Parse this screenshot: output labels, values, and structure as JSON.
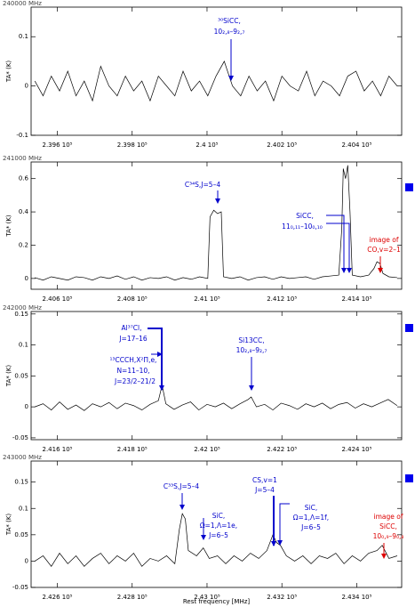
{
  "chart_data": [
    {
      "type": "line",
      "subtitle": "240000 MHz",
      "ylabel": "TA* (K)",
      "color": "#000000",
      "xlim": [
        239530,
        240520
      ],
      "ylim": [
        -0.1,
        0.16
      ],
      "xticks": [
        {
          "value": 239600,
          "label": "2.396 10⁵"
        },
        {
          "value": 239800,
          "label": "2.398 10⁵"
        },
        {
          "value": 240000,
          "label": "2.4 10⁵"
        },
        {
          "value": 240200,
          "label": "2.402 10⁵"
        },
        {
          "value": 240400,
          "label": "2.404 10⁵"
        }
      ],
      "yticks": [
        -0.1,
        0,
        0.1
      ],
      "x": [
        239540,
        239562,
        239584,
        239606,
        239628,
        239650,
        239672,
        239694,
        239716,
        239738,
        239760,
        239782,
        239804,
        239826,
        239848,
        239870,
        239892,
        239914,
        239936,
        239958,
        239980,
        240002,
        240024,
        240046,
        240068,
        240090,
        240112,
        240134,
        240156,
        240178,
        240200,
        240222,
        240244,
        240266,
        240288,
        240310,
        240332,
        240354,
        240376,
        240398,
        240420,
        240442,
        240464,
        240486,
        240508
      ],
      "values": [
        0.01,
        -0.02,
        0.02,
        -0.01,
        0.03,
        -0.02,
        0.01,
        -0.03,
        0.04,
        0.0,
        -0.02,
        0.02,
        -0.01,
        0.01,
        -0.03,
        0.02,
        0.0,
        -0.02,
        0.03,
        -0.01,
        0.01,
        -0.02,
        0.02,
        0.05,
        0.0,
        -0.02,
        0.02,
        -0.01,
        0.01,
        -0.03,
        0.02,
        0.0,
        -0.01,
        0.03,
        -0.02,
        0.01,
        0.0,
        -0.02,
        0.02,
        0.03,
        -0.01,
        0.01,
        -0.02,
        0.02,
        0.0
      ],
      "annotations": [
        {
          "lines": [
            "³⁰SiCC,",
            "10₂,₈–9₂,₇"
          ],
          "color": "#0000cc"
        }
      ]
    },
    {
      "type": "line",
      "subtitle": "241000 MHz",
      "ylabel": "TA* (K)",
      "color": "#000000",
      "xlim": [
        240530,
        241520
      ],
      "ylim": [
        -0.065,
        0.7
      ],
      "xticks": [
        {
          "value": 240600,
          "label": "2.406 10⁵"
        },
        {
          "value": 240800,
          "label": "2.408 10⁵"
        },
        {
          "value": 241000,
          "label": "2.41 10⁵"
        },
        {
          "value": 241200,
          "label": "2.412 10⁵"
        },
        {
          "value": 241400,
          "label": "2.414 10⁵"
        }
      ],
      "yticks": [
        0,
        0.2,
        0.4,
        0.6
      ],
      "x": [
        240540,
        240562,
        240584,
        240606,
        240628,
        240650,
        240672,
        240694,
        240716,
        240738,
        240760,
        240782,
        240804,
        240826,
        240848,
        240870,
        240892,
        240914,
        240936,
        240958,
        240980,
        241002,
        241008,
        241018,
        241028,
        241038,
        241044,
        241066,
        241088,
        241110,
        241132,
        241154,
        241176,
        241198,
        241220,
        241242,
        241264,
        241286,
        241308,
        241330,
        241352,
        241360,
        241364,
        241370,
        241376,
        241382,
        241388,
        241410,
        241432,
        241446,
        241454,
        241462,
        241470,
        241486,
        241508
      ],
      "values": [
        0.005,
        -0.01,
        0.01,
        0.0,
        -0.01,
        0.01,
        0.005,
        -0.01,
        0.01,
        0.0,
        0.015,
        -0.005,
        0.01,
        -0.01,
        0.005,
        0.0,
        0.01,
        -0.01,
        0.005,
        -0.005,
        0.01,
        0.0,
        0.37,
        0.41,
        0.39,
        0.4,
        0.01,
        0.0,
        0.01,
        -0.01,
        0.005,
        0.01,
        -0.005,
        0.01,
        0.0,
        0.005,
        0.01,
        -0.005,
        0.01,
        0.015,
        0.02,
        0.3,
        0.66,
        0.6,
        0.68,
        0.4,
        0.02,
        0.01,
        0.02,
        0.06,
        0.1,
        0.09,
        0.03,
        0.01,
        0.005
      ],
      "annotations": [
        {
          "lines": [
            "C³⁴S,J=5–4"
          ],
          "color": "#0000cc"
        },
        {
          "lines": [
            "SiCC,",
            "11₀,₁₁–10₀,₁₀"
          ],
          "color": "#0000cc"
        },
        {
          "lines": [
            "image of",
            "CO,v=2–1"
          ],
          "color": "#dd0000"
        }
      ]
    },
    {
      "type": "line",
      "subtitle": "242000 MHz",
      "ylabel": "TA* (K)",
      "color": "#000000",
      "xlim": [
        241530,
        242520
      ],
      "ylim": [
        -0.053,
        0.154
      ],
      "xticks": [
        {
          "value": 241600,
          "label": "2.416 10⁵"
        },
        {
          "value": 241800,
          "label": "2.418 10⁵"
        },
        {
          "value": 242000,
          "label": "2.42 10⁵"
        },
        {
          "value": 242200,
          "label": "2.422 10⁵"
        },
        {
          "value": 242400,
          "label": "2.424 10⁵"
        }
      ],
      "yticks": [
        -0.05,
        0,
        0.05,
        0.1,
        0.15
      ],
      "x": [
        241540,
        241562,
        241584,
        241606,
        241628,
        241650,
        241672,
        241694,
        241716,
        241738,
        241760,
        241782,
        241804,
        241826,
        241848,
        241870,
        241880,
        241890,
        241912,
        241934,
        241956,
        241978,
        242000,
        242022,
        242044,
        242066,
        242088,
        242110,
        242118,
        242132,
        242154,
        242176,
        242198,
        242220,
        242242,
        242264,
        242286,
        242308,
        242330,
        242352,
        242374,
        242396,
        242418,
        242440,
        242462,
        242484,
        242508
      ],
      "values": [
        0.0,
        0.005,
        -0.005,
        0.008,
        -0.004,
        0.003,
        -0.006,
        0.005,
        0.0,
        0.007,
        -0.003,
        0.006,
        0.002,
        -0.005,
        0.004,
        0.01,
        0.035,
        0.005,
        -0.004,
        0.003,
        0.008,
        -0.005,
        0.004,
        0.0,
        0.006,
        -0.003,
        0.005,
        0.012,
        0.016,
        0.0,
        0.004,
        -0.005,
        0.006,
        0.002,
        -0.004,
        0.005,
        0.0,
        0.006,
        -0.003,
        0.004,
        0.007,
        -0.002,
        0.005,
        0.0,
        0.006,
        0.012,
        0.002
      ],
      "annotations": [
        {
          "lines": [
            "Al³⁷Cl,",
            "J=17–16"
          ],
          "color": "#0000cc"
        },
        {
          "lines": [
            "¹³CCCH,X²Π,e,",
            "N=11–10,",
            "J=23/2–21/2"
          ],
          "color": "#0000cc"
        },
        {
          "lines": [
            "Si13CC,",
            "10₂,₈–9₂,₇"
          ],
          "color": "#0000cc"
        }
      ]
    },
    {
      "type": "line",
      "subtitle": "243000 MHz",
      "ylabel": "TA* (K)",
      "xlabel": "Rest frequency [MHz]",
      "color": "#000000",
      "xlim": [
        242530,
        243520
      ],
      "ylim": [
        -0.05,
        0.19
      ],
      "xticks": [
        {
          "value": 242600,
          "label": "2.426 10⁵"
        },
        {
          "value": 242800,
          "label": "2.428 10⁵"
        },
        {
          "value": 243000,
          "label": "2.43 10⁵"
        },
        {
          "value": 243200,
          "label": "2.432 10⁵"
        },
        {
          "value": 243400,
          "label": "2.434 10⁵"
        }
      ],
      "yticks": [
        -0.05,
        0,
        0.05,
        0.1,
        0.15
      ],
      "x": [
        242540,
        242562,
        242584,
        242606,
        242628,
        242650,
        242672,
        242694,
        242716,
        242738,
        242760,
        242782,
        242804,
        242826,
        242848,
        242870,
        242892,
        242914,
        242926,
        242934,
        242942,
        242950,
        242972,
        242990,
        243006,
        243028,
        243050,
        243072,
        243094,
        243116,
        243138,
        243160,
        243176,
        243186,
        243196,
        243212,
        243234,
        243256,
        243278,
        243300,
        243322,
        243344,
        243366,
        243388,
        243410,
        243432,
        243454,
        243468,
        243486,
        243508
      ],
      "values": [
        0.0,
        0.01,
        -0.01,
        0.015,
        -0.005,
        0.01,
        -0.01,
        0.005,
        0.015,
        -0.005,
        0.01,
        0.0,
        0.015,
        -0.01,
        0.005,
        0.0,
        0.01,
        -0.005,
        0.06,
        0.09,
        0.08,
        0.02,
        0.01,
        0.025,
        0.005,
        0.01,
        -0.005,
        0.01,
        0.0,
        0.015,
        0.005,
        0.02,
        0.05,
        0.035,
        0.03,
        0.01,
        0.0,
        0.01,
        -0.005,
        0.01,
        0.005,
        0.015,
        -0.005,
        0.01,
        0.0,
        0.015,
        0.02,
        0.03,
        0.005,
        0.01
      ],
      "annotations": [
        {
          "lines": [
            "C³³S,J=5–4"
          ],
          "color": "#0000cc"
        },
        {
          "lines": [
            "SiC,",
            "Ω=1,Λ=1e,",
            "J=6–5"
          ],
          "color": "#0000cc"
        },
        {
          "lines": [
            "CS,v=1",
            "J=5–4"
          ],
          "color": "#0000cc"
        },
        {
          "lines": [
            "SiC,",
            "Ω=1,Λ=1f,",
            "J=6–5"
          ],
          "color": "#0000cc"
        },
        {
          "lines": [
            "image of",
            "SiCC,",
            "10₀,₉–9₀,₈"
          ],
          "color": "#dd0000"
        }
      ]
    }
  ]
}
